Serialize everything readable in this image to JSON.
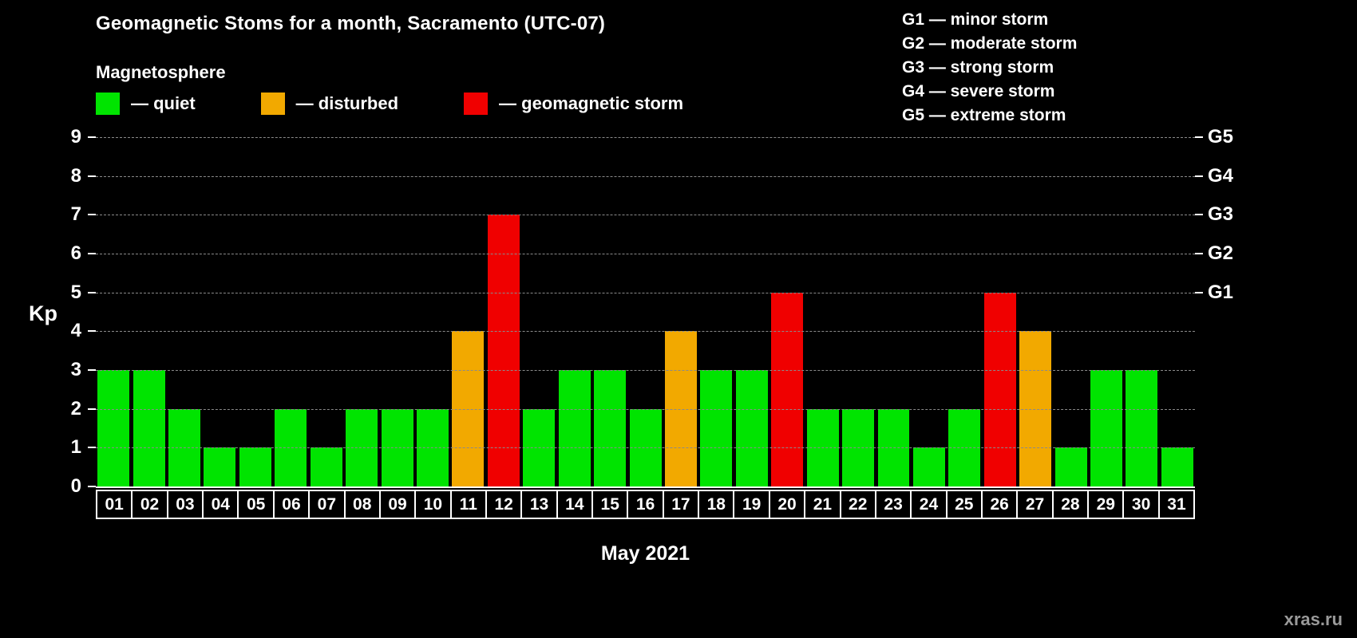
{
  "title": "Geomagnetic Stoms for a month, Sacramento (UTC-07)",
  "magnetosphere": {
    "heading": "Magnetosphere",
    "items": [
      {
        "name": "quiet",
        "label": "— quiet",
        "color": "#00e400"
      },
      {
        "name": "disturbed",
        "label": "— disturbed",
        "color": "#f2a900"
      },
      {
        "name": "storm",
        "label": "— geomagnetic storm",
        "color": "#f00000"
      }
    ]
  },
  "storm_scale": [
    "G1 — minor storm",
    "G2 — moderate storm",
    "G3 — strong storm",
    "G4 — severe storm",
    "G5 — extreme storm"
  ],
  "chart_data": {
    "type": "bar",
    "x": [
      "01",
      "02",
      "03",
      "04",
      "05",
      "06",
      "07",
      "08",
      "09",
      "10",
      "11",
      "12",
      "13",
      "14",
      "15",
      "16",
      "17",
      "18",
      "19",
      "20",
      "21",
      "22",
      "23",
      "24",
      "25",
      "26",
      "27",
      "28",
      "29",
      "30",
      "31"
    ],
    "values": [
      3,
      3,
      2,
      1,
      1,
      2,
      1,
      2,
      2,
      2,
      4,
      7,
      2,
      3,
      3,
      2,
      4,
      3,
      3,
      5,
      2,
      2,
      2,
      1,
      2,
      5,
      4,
      1,
      3,
      3,
      1
    ],
    "status": [
      "quiet",
      "quiet",
      "quiet",
      "quiet",
      "quiet",
      "quiet",
      "quiet",
      "quiet",
      "quiet",
      "quiet",
      "disturbed",
      "storm",
      "quiet",
      "quiet",
      "quiet",
      "quiet",
      "disturbed",
      "quiet",
      "quiet",
      "storm",
      "quiet",
      "quiet",
      "quiet",
      "quiet",
      "quiet",
      "storm",
      "disturbed",
      "quiet",
      "quiet",
      "quiet",
      "quiet"
    ],
    "status_colors": {
      "quiet": "#00e400",
      "disturbed": "#f2a900",
      "storm": "#f00000"
    },
    "title": "Geomagnetic Stoms for a month, Sacramento (UTC-07)",
    "ylabel": "Kp",
    "xlabel": "May 2021",
    "ylim": [
      0,
      9
    ],
    "yticks": [
      0,
      1,
      2,
      3,
      4,
      5,
      6,
      7,
      8,
      9
    ],
    "right_axis": [
      {
        "kp": 5,
        "label": "G1"
      },
      {
        "kp": 6,
        "label": "G2"
      },
      {
        "kp": 7,
        "label": "G3"
      },
      {
        "kp": 8,
        "label": "G4"
      },
      {
        "kp": 9,
        "label": "G5"
      }
    ],
    "grid": true,
    "legend_position": "top"
  },
  "watermark": "xras.ru"
}
